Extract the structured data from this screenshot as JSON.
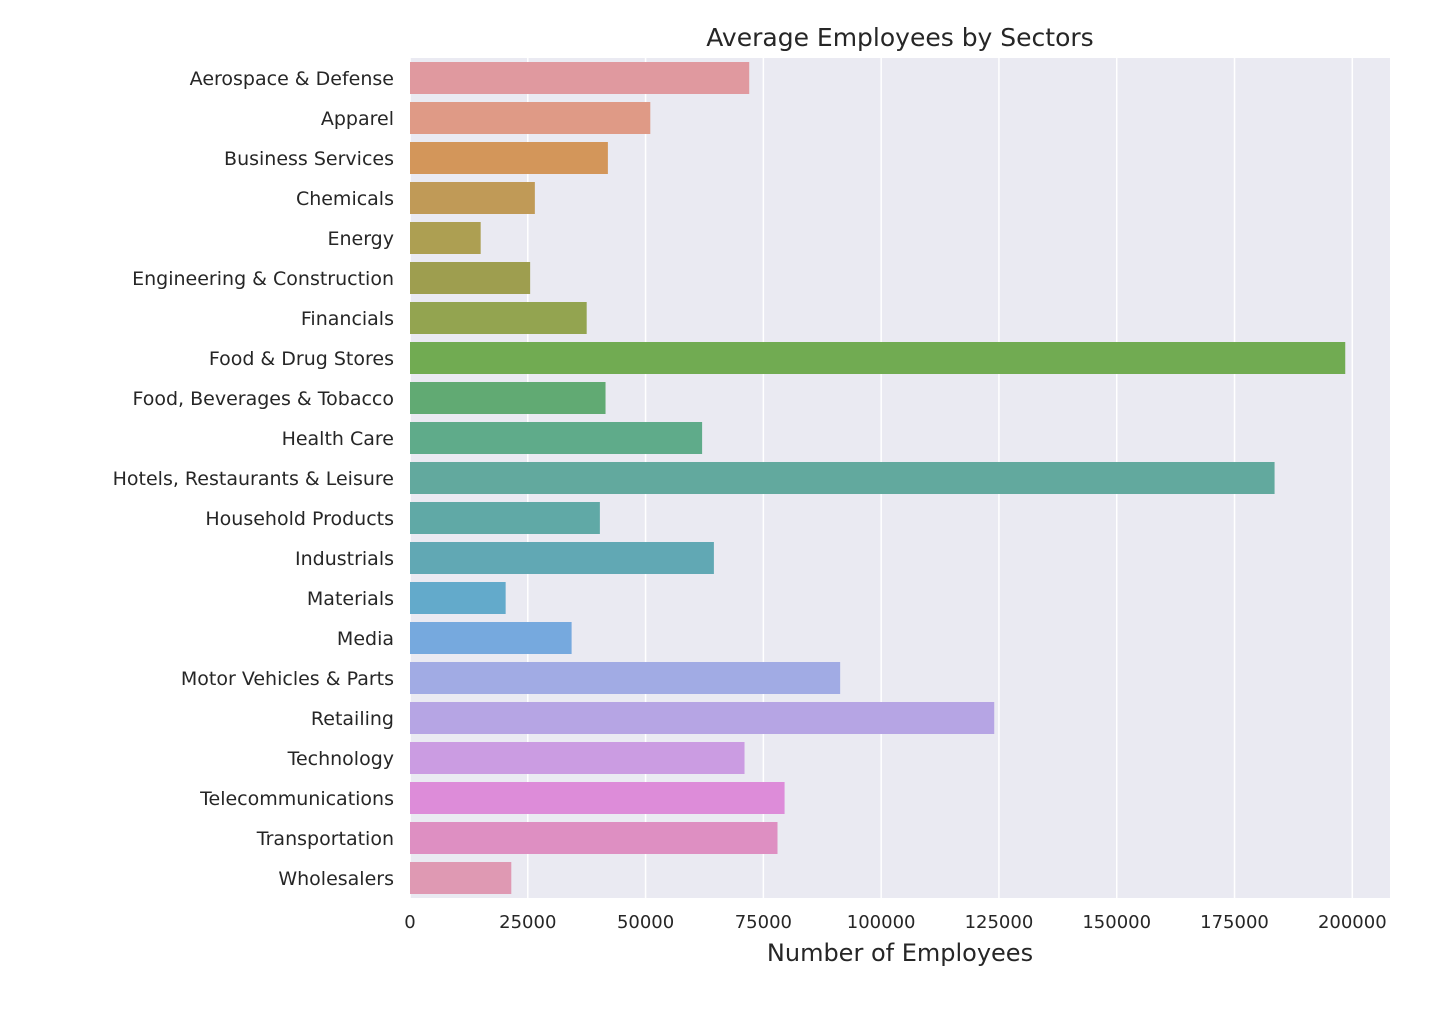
{
  "chart_data": {
    "type": "bar",
    "orientation": "horizontal",
    "title": "Average Employees by Sectors",
    "xlabel": "Number of Employees",
    "ylabel": "",
    "xlim": [
      0,
      208000
    ],
    "xticks": [
      0,
      25000,
      50000,
      75000,
      100000,
      125000,
      150000,
      175000,
      200000
    ],
    "grid": true,
    "legend": "none",
    "categories": [
      "Aerospace & Defense",
      "Apparel",
      "Business Services",
      "Chemicals",
      "Energy",
      "Engineering & Construction",
      "Financials",
      "Food & Drug Stores",
      "Food, Beverages & Tobacco",
      "Health Care",
      "Hotels, Restaurants & Leisure",
      "Household Products",
      "Industrials",
      "Materials",
      "Media",
      "Motor Vehicles & Parts",
      "Retailing",
      "Technology",
      "Telecommunications",
      "Transportation",
      "Wholesalers"
    ],
    "values": [
      72000,
      51000,
      42000,
      26500,
      15000,
      25500,
      37500,
      198500,
      41500,
      62000,
      183500,
      40300,
      64500,
      20300,
      34300,
      91300,
      124000,
      71000,
      79500,
      78000,
      21500
    ],
    "colors": [
      "#e0999f",
      "#df9a86",
      "#d3965a",
      "#c09a57",
      "#ad9f52",
      "#9e9e4f",
      "#93a450",
      "#71ab52",
      "#61aa73",
      "#5fab8a",
      "#62a99e",
      "#60a9a6",
      "#61a8b4",
      "#63aacb",
      "#76a9de",
      "#a1abe4",
      "#b6a5e4",
      "#cb9ce2",
      "#dd8cd9",
      "#de8fc2",
      "#df99b3"
    ],
    "plot_background": "#eaeaf2",
    "grid_color": "#ffffff"
  }
}
